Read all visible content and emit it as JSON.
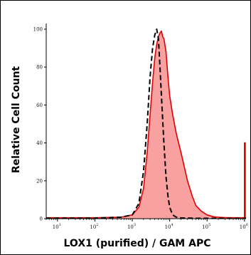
{
  "chart_data": {
    "type": "area",
    "xlabel": "LOX1 (purified) / GAM APC",
    "ylabel": "Relative Cell Count",
    "xscale": "log",
    "xlim": [
      5,
      1100000
    ],
    "ylim": [
      0,
      103
    ],
    "y_ticks": [
      0,
      20,
      40,
      60,
      80,
      100
    ],
    "x_ticks": [
      {
        "value": 10,
        "base": "10",
        "exp": "1"
      },
      {
        "value": 100,
        "base": "10",
        "exp": "2"
      },
      {
        "value": 1000,
        "base": "10",
        "exp": "3"
      },
      {
        "value": 10000,
        "base": "10",
        "exp": "4"
      },
      {
        "value": 100000,
        "base": "10",
        "exp": "5"
      },
      {
        "value": 1000000,
        "base": "10",
        "exp": "6"
      }
    ],
    "grid": false,
    "legend": "none",
    "colors": {
      "filled_fill": "#f9a0a0",
      "filled_line": "#e00000",
      "control_line": "#000000"
    },
    "series": [
      {
        "style": "filled",
        "x": [
          5,
          100,
          500,
          1000,
          1500,
          2000,
          2500,
          3000,
          3500,
          4000,
          4500,
          5000,
          5500,
          6000,
          6500,
          7000,
          8000,
          9000,
          10000,
          12000,
          15000,
          20000,
          30000,
          40000,
          50000,
          70000,
          100000,
          150000,
          200000,
          300000,
          500000,
          800000,
          1000000,
          1000000,
          1050000,
          1050000,
          1100000
        ],
        "y": [
          0.5,
          0.5,
          0.8,
          2,
          6,
          16,
          35,
          55,
          72,
          85,
          92,
          96,
          98,
          99,
          96,
          95,
          88,
          75,
          65,
          55,
          45,
          35,
          20,
          12,
          7,
          4,
          2,
          1,
          0.8,
          0.6,
          0.5,
          0.5,
          0.5,
          40,
          40,
          0.5,
          0.5
        ]
      },
      {
        "style": "dashed",
        "x": [
          5,
          100,
          500,
          1000,
          1500,
          2000,
          2500,
          3000,
          3500,
          4000,
          4500,
          5000,
          5500,
          6000,
          7000,
          8000,
          9000,
          10000,
          12000,
          15000,
          20000,
          50000,
          1100000
        ],
        "y": [
          0.3,
          0.3,
          0.8,
          2,
          8,
          25,
          50,
          75,
          90,
          97,
          100,
          95,
          80,
          65,
          40,
          22,
          12,
          6,
          2,
          0.8,
          0.4,
          0.2,
          0.2
        ]
      }
    ]
  }
}
